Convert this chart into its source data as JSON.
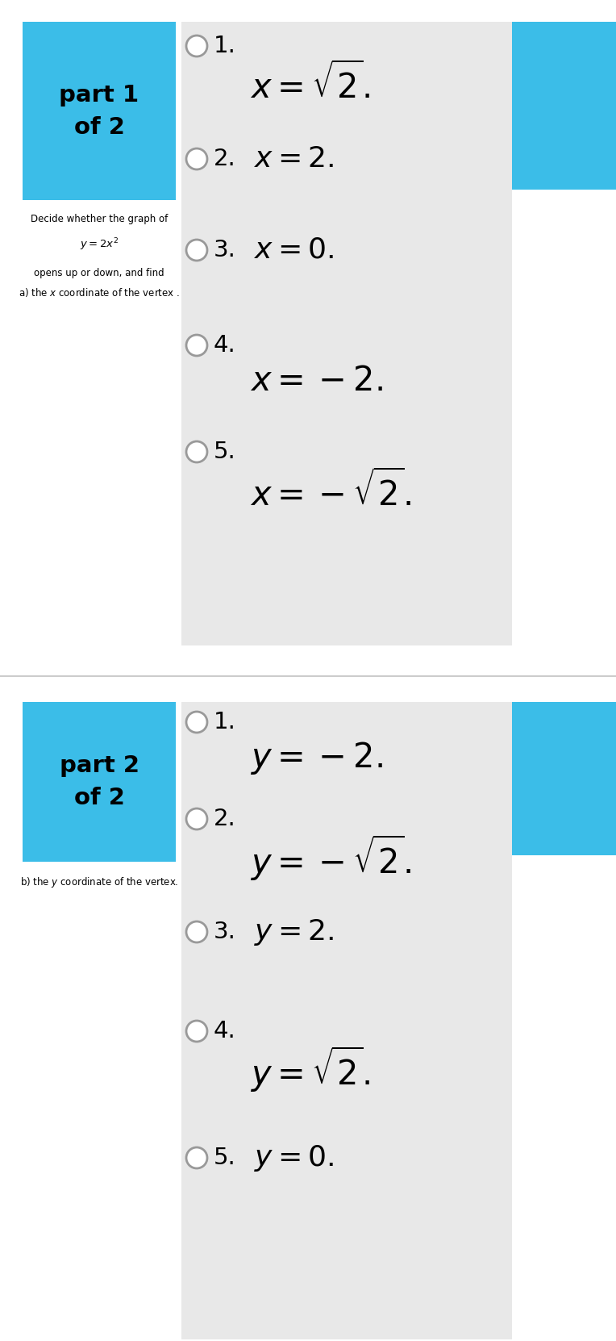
{
  "fig_width": 7.64,
  "fig_height": 16.62,
  "bg_color": "#ffffff",
  "panel_bg": "#e8e8e8",
  "blue_color": "#3bbde8",
  "separator_color": "#cccccc",
  "part1": {
    "label_line1": "part 1",
    "label_line2": "of 2",
    "desc_line1": "Decide whether the graph of",
    "desc_line2": "$y = 2x^2$",
    "desc_line3": "opens up or down, and find",
    "desc_line4": "a) the $x$ coordinate of the vertex .",
    "options": [
      {
        "num": "1.",
        "expr": "$x = \\sqrt{2}.$",
        "inline": false
      },
      {
        "num": "2.",
        "expr": "$x = 2.$",
        "inline": true
      },
      {
        "num": "3.",
        "expr": "$x = 0.$",
        "inline": true
      },
      {
        "num": "4.",
        "expr": "$x = -2.$",
        "inline": false
      },
      {
        "num": "5.",
        "expr": "$x = -\\sqrt{2}.$",
        "inline": false
      }
    ]
  },
  "part2": {
    "label_line1": "part 2",
    "label_line2": "of 2",
    "desc_line1": "b) the $y$ coordinate of the vertex.",
    "options": [
      {
        "num": "1.",
        "expr": "$y = -2.$",
        "inline": false
      },
      {
        "num": "2.",
        "expr": "$y = -\\sqrt{2}.$",
        "inline": false
      },
      {
        "num": "3.",
        "expr": "$y = 2.$",
        "inline": true
      },
      {
        "num": "4.",
        "expr": "$y = \\sqrt{2}.$",
        "inline": false
      },
      {
        "num": "5.",
        "expr": "$y = 0.$",
        "inline": true
      }
    ]
  }
}
